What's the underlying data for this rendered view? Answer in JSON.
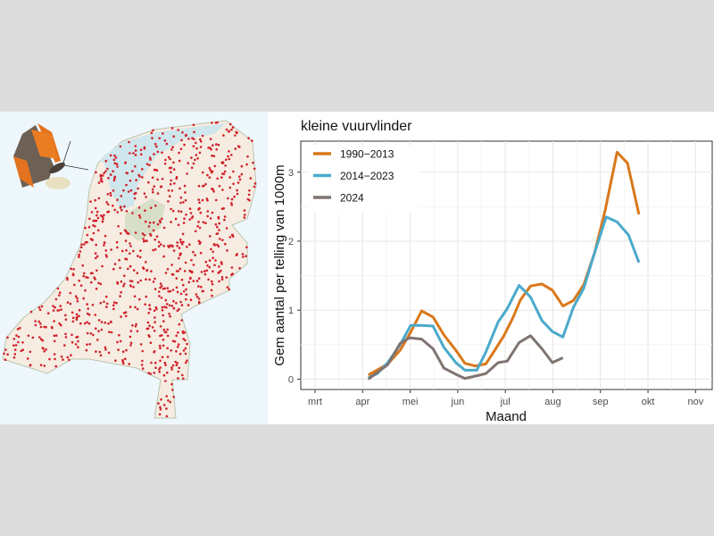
{
  "chart_data": {
    "type": "line",
    "title": "kleine vuurvlinder",
    "xlabel": "Maand",
    "ylabel": "Gem aantal per telling van 1000m",
    "xlim": [
      2.7,
      11.35
    ],
    "ylim": [
      -0.15,
      3.45
    ],
    "grid": true,
    "legend_position": "top-left",
    "x_ticks": [
      {
        "value": 3,
        "label": "mrt"
      },
      {
        "value": 4,
        "label": "apr"
      },
      {
        "value": 5,
        "label": "mei"
      },
      {
        "value": 6,
        "label": "jun"
      },
      {
        "value": 7,
        "label": "jul"
      },
      {
        "value": 8,
        "label": "aug"
      },
      {
        "value": 9,
        "label": "sep"
      },
      {
        "value": 10,
        "label": "okt"
      },
      {
        "value": 11,
        "label": "nov"
      }
    ],
    "y_ticks": [
      {
        "value": 0,
        "label": "0"
      },
      {
        "value": 1,
        "label": "1"
      },
      {
        "value": 2,
        "label": "2"
      },
      {
        "value": 3,
        "label": "3"
      }
    ],
    "series": [
      {
        "name": "1990−2013",
        "color": "#d9781a",
        "x": [
          4.12,
          4.53,
          4.79,
          5.01,
          5.24,
          5.48,
          5.71,
          5.96,
          6.15,
          6.37,
          6.59,
          6.78,
          6.97,
          7.16,
          7.32,
          7.53,
          7.77,
          7.99,
          8.21,
          8.43,
          8.65,
          8.88,
          9.1,
          9.35,
          9.57,
          9.81
        ],
        "y": [
          0.06,
          0.22,
          0.42,
          0.68,
          0.99,
          0.9,
          0.64,
          0.42,
          0.23,
          0.19,
          0.22,
          0.42,
          0.63,
          0.89,
          1.15,
          1.35,
          1.38,
          1.29,
          1.06,
          1.14,
          1.37,
          1.84,
          2.45,
          3.29,
          3.13,
          2.39
        ]
      },
      {
        "name": "2014−2023",
        "color": "#4aaacb",
        "x": [
          4.12,
          4.31,
          4.53,
          4.79,
          5.01,
          5.24,
          5.48,
          5.71,
          5.96,
          6.15,
          6.4,
          6.59,
          6.85,
          7.04,
          7.29,
          7.53,
          7.77,
          7.99,
          8.21,
          8.43,
          8.65,
          8.88,
          9.12,
          9.35,
          9.59,
          9.81
        ],
        "y": [
          0.02,
          0.08,
          0.24,
          0.5,
          0.78,
          0.78,
          0.77,
          0.46,
          0.24,
          0.13,
          0.13,
          0.39,
          0.83,
          1.02,
          1.36,
          1.19,
          0.85,
          0.69,
          0.61,
          1.04,
          1.32,
          1.84,
          2.35,
          2.28,
          2.09,
          1.69
        ]
      },
      {
        "name": "2024",
        "color": "#7f7470",
        "x": [
          4.12,
          4.53,
          4.79,
          4.99,
          5.24,
          5.48,
          5.71,
          5.96,
          6.15,
          6.4,
          6.59,
          6.85,
          7.04,
          7.29,
          7.53,
          7.77,
          7.99,
          8.21
        ],
        "y": [
          0.0,
          0.21,
          0.52,
          0.6,
          0.58,
          0.44,
          0.16,
          0.07,
          0.01,
          0.05,
          0.08,
          0.24,
          0.26,
          0.53,
          0.63,
          0.44,
          0.24,
          0.31
        ]
      }
    ]
  },
  "map": {
    "dot_color": "#d0202a"
  }
}
